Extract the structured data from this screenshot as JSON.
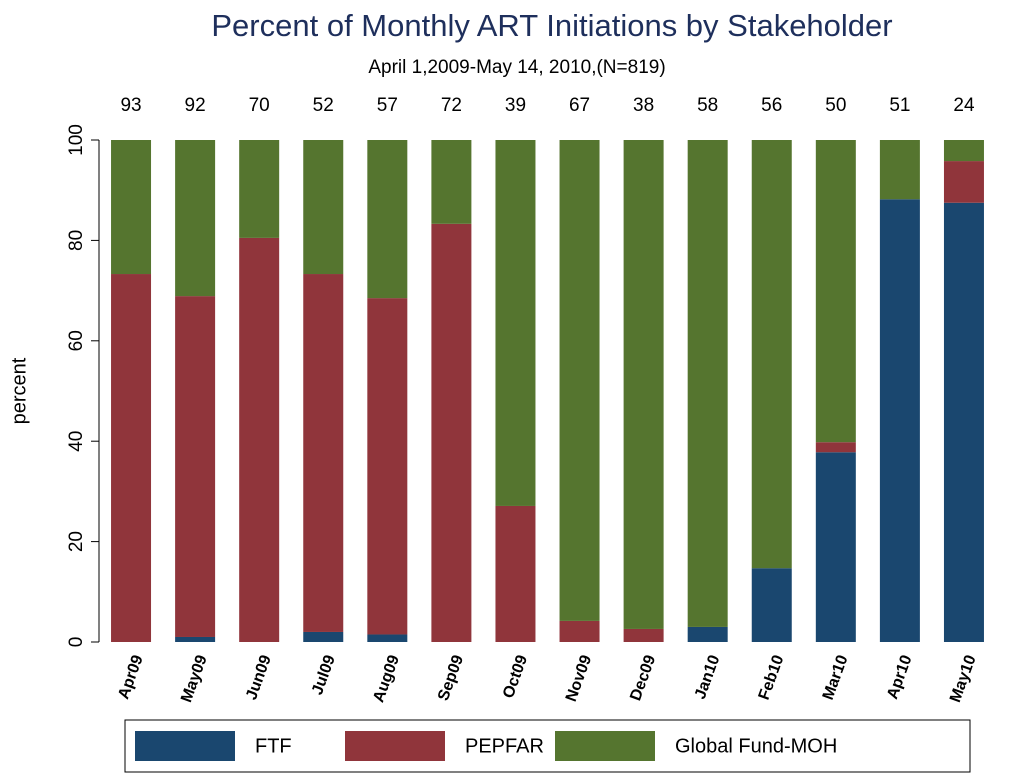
{
  "chart_data": {
    "type": "stacked_bar",
    "title": "Percent of Monthly ART Initiations by Stakeholder",
    "subtitle": "April 1,2009-May 14, 2010,(N=819)",
    "y_label": "percent",
    "categories": [
      "Apr09",
      "May09",
      "Jun09",
      "Jul09",
      "Aug09",
      "Sep09",
      "Oct09",
      "Nov09",
      "Dec09",
      "Jan10",
      "Feb10",
      "Mar10",
      "Apr10",
      "May10"
    ],
    "counts": [
      93,
      92,
      70,
      52,
      57,
      72,
      39,
      67,
      38,
      58,
      56,
      50,
      51,
      24
    ],
    "series": [
      {
        "name": "FTF",
        "color": "#1a476f",
        "values": [
          0,
          1,
          0,
          2,
          1.5,
          0,
          0,
          0,
          0,
          3,
          14.7,
          37.8,
          88.2,
          87.5
        ]
      },
      {
        "name": "PEPFAR",
        "color": "#90353b",
        "values": [
          73.3,
          67.9,
          80.5,
          71.3,
          67,
          83.3,
          27.1,
          4.2,
          2.6,
          0,
          0,
          2,
          0,
          8.3
        ]
      },
      {
        "name": "Global Fund-MOH",
        "color": "#55752f",
        "values": [
          26.7,
          31.1,
          19.5,
          26.7,
          31.5,
          16.7,
          72.9,
          95.8,
          97.4,
          97,
          85.3,
          60.2,
          11.8,
          4.2
        ]
      }
    ],
    "ylim": [
      0,
      100
    ],
    "yticks": [
      0,
      20,
      40,
      60,
      80,
      100
    ]
  }
}
